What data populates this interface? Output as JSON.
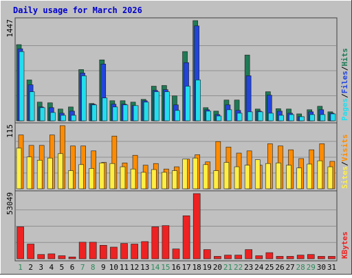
{
  "chart_data": {
    "type": "bar",
    "title": "Daily usage for March 2026",
    "days": [
      "1",
      "2",
      "3",
      "4",
      "5",
      "6",
      "7",
      "8",
      "9",
      "10",
      "11",
      "12",
      "13",
      "14",
      "15",
      "16",
      "17",
      "18",
      "19",
      "20",
      "21",
      "22",
      "23",
      "24",
      "25",
      "26",
      "27",
      "28",
      "29",
      "30",
      "31"
    ],
    "weekend_days": [
      "1",
      "7",
      "8",
      "14",
      "15",
      "21",
      "22",
      "28",
      "29"
    ],
    "panels": [
      {
        "id": "hits-files-pages",
        "max_label": "1447",
        "ymax": 1447,
        "axis_labels": [
          "Pages",
          "Files",
          "Hits"
        ],
        "series": [
          {
            "name": "Hits",
            "color": "#1f7a55",
            "values": [
              1100,
              590,
              270,
              260,
              170,
              200,
              740,
              250,
              880,
              290,
              290,
              270,
              310,
              500,
              510,
              360,
              1000,
              1447,
              190,
              140,
              300,
              300,
              950,
              170,
              420,
              175,
              170,
              100,
              160,
              210,
              130
            ]
          },
          {
            "name": "Files",
            "color": "#2244dd",
            "values": [
              1040,
              520,
              200,
              190,
              110,
              140,
              690,
              240,
              820,
              240,
              240,
              220,
              290,
              440,
              450,
              230,
              840,
              1370,
              160,
              90,
              230,
              150,
              650,
              140,
              370,
              140,
              110,
              60,
              130,
              160,
              110
            ]
          },
          {
            "name": "Pages",
            "color": "#22ddee",
            "values": [
              1000,
              420,
              190,
              120,
              80,
              80,
              650,
              230,
              330,
              200,
              230,
              220,
              270,
              420,
              420,
              150,
              500,
              590,
              140,
              70,
              160,
              110,
              130,
              130,
              110,
              80,
              90,
              60,
              90,
              90,
              100
            ]
          }
        ]
      },
      {
        "id": "visits-sites",
        "max_label": "115",
        "ymax": 115,
        "axis_labels": [
          "Sites",
          "Visits"
        ],
        "series": [
          {
            "name": "Visits",
            "color": "#ff8c00",
            "values": [
              98,
              79,
              79,
              98,
              115,
              78,
              78,
              69,
              48,
              96,
              47,
              61,
              43,
              46,
              36,
              40,
              54,
              62,
              49,
              86,
              76,
              65,
              69,
              43,
              82,
              78,
              71,
              55,
              71,
              82,
              50
            ]
          },
          {
            "name": "Sites",
            "color": "#ffee44",
            "values": [
              74,
              58,
              52,
              56,
              64,
              33,
              44,
              37,
              47,
              46,
              40,
              36,
              30,
              35,
              30,
              33,
              54,
              56,
              44,
              33,
              48,
              40,
              43,
              53,
              46,
              47,
              43,
              38,
              45,
              51,
              40
            ]
          }
        ]
      },
      {
        "id": "kbytes",
        "max_label": "53049",
        "ymax": 53049,
        "axis_labels": [
          "KBytes"
        ],
        "series": [
          {
            "name": "KBytes",
            "color": "#ee2222",
            "values": [
              26000,
              12000,
              3500,
              4000,
              2500,
              1500,
              13500,
              13500,
              11000,
              9500,
              12500,
              12000,
              14000,
              26000,
              27000,
              8000,
              35000,
              53049,
              7500,
              2000,
              3000,
              3000,
              7500,
              2500,
              5000,
              2000,
              2000,
              3000,
              3500,
              2000,
              2000
            ]
          }
        ]
      }
    ]
  }
}
